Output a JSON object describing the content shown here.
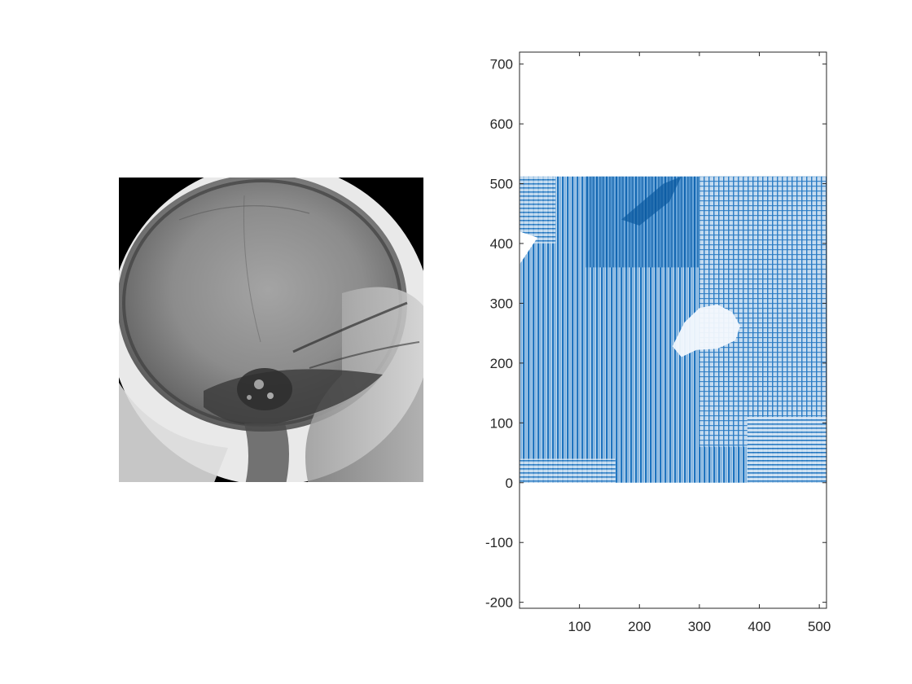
{
  "figure": {
    "background": "#ffffff"
  },
  "image_panel": {
    "content": "grayscale lateral skull x-ray",
    "frame_color": "#000000"
  },
  "chart_data": {
    "type": "area",
    "plot": "filled contour / quiver-style field rendering",
    "color": "#0072BD",
    "xlim": [
      0,
      512
    ],
    "ylim": [
      -210,
      720
    ],
    "data_extent": {
      "x": [
        0,
        512
      ],
      "y": [
        0,
        512
      ]
    },
    "xticks": [
      100,
      200,
      300,
      400,
      500
    ],
    "xtick_labels": [
      "100",
      "200",
      "300",
      "400",
      "500"
    ],
    "yticks": [
      -200,
      -100,
      0,
      100,
      200,
      300,
      400,
      500,
      600,
      700
    ],
    "ytick_labels": [
      "-200",
      "-100",
      "0",
      "100",
      "200",
      "300",
      "400",
      "500",
      "600",
      "700"
    ],
    "grid": false,
    "box": true,
    "title": "",
    "xlabel": "",
    "ylabel": ""
  }
}
